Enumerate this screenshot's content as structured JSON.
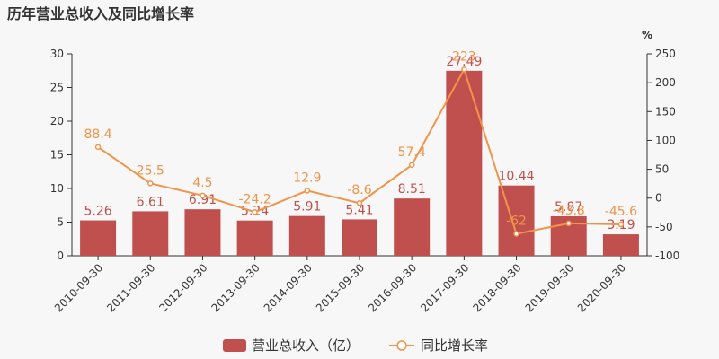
{
  "page_title": "历年营业总收入及同比增长率",
  "colors": {
    "bar": "#c0504d",
    "line": "#f0944a",
    "axis": "#333333",
    "text": "#333333"
  },
  "chart_data": {
    "type": "bar+line",
    "title": "历年营业总收入及同比增长率",
    "categories": [
      "2010-09-30",
      "2011-09-30",
      "2012-09-30",
      "2013-09-30",
      "2014-09-30",
      "2015-09-30",
      "2016-09-30",
      "2017-09-30",
      "2018-09-30",
      "2019-09-30",
      "2020-09-30"
    ],
    "series": [
      {
        "name": "营业总收入（亿）",
        "kind": "bar",
        "axis": "left",
        "values": [
          5.26,
          6.61,
          6.91,
          5.24,
          5.91,
          5.41,
          8.51,
          27.49,
          10.44,
          5.87,
          3.19
        ],
        "labels": [
          "5.26",
          "6.61",
          "6.91",
          "5.24",
          "5.91",
          "5.41",
          "8.51",
          "27.49",
          "10.44",
          "5.87",
          "3.19"
        ]
      },
      {
        "name": "同比增长率",
        "kind": "line",
        "axis": "right",
        "values": [
          88.4,
          25.5,
          4.5,
          -24.2,
          12.9,
          -8.6,
          57.4,
          223,
          -62,
          -43.8,
          -45.6
        ],
        "labels": [
          "88.4",
          "25.5",
          "4.5",
          "-24.2",
          "12.9",
          "-8.6",
          "57.4",
          "223",
          "-62",
          "-43.8",
          "-45.6"
        ]
      }
    ],
    "y_left": {
      "min": 0,
      "max": 30,
      "ticks": [
        "0",
        "5",
        "10",
        "15",
        "20",
        "25",
        "30"
      ]
    },
    "y_right": {
      "min": -100,
      "max": 250,
      "unit": "%",
      "ticks": [
        "-100",
        "-50",
        "0",
        "50",
        "100",
        "150",
        "200",
        "250"
      ]
    },
    "grid": false,
    "legend_position": "bottom"
  }
}
